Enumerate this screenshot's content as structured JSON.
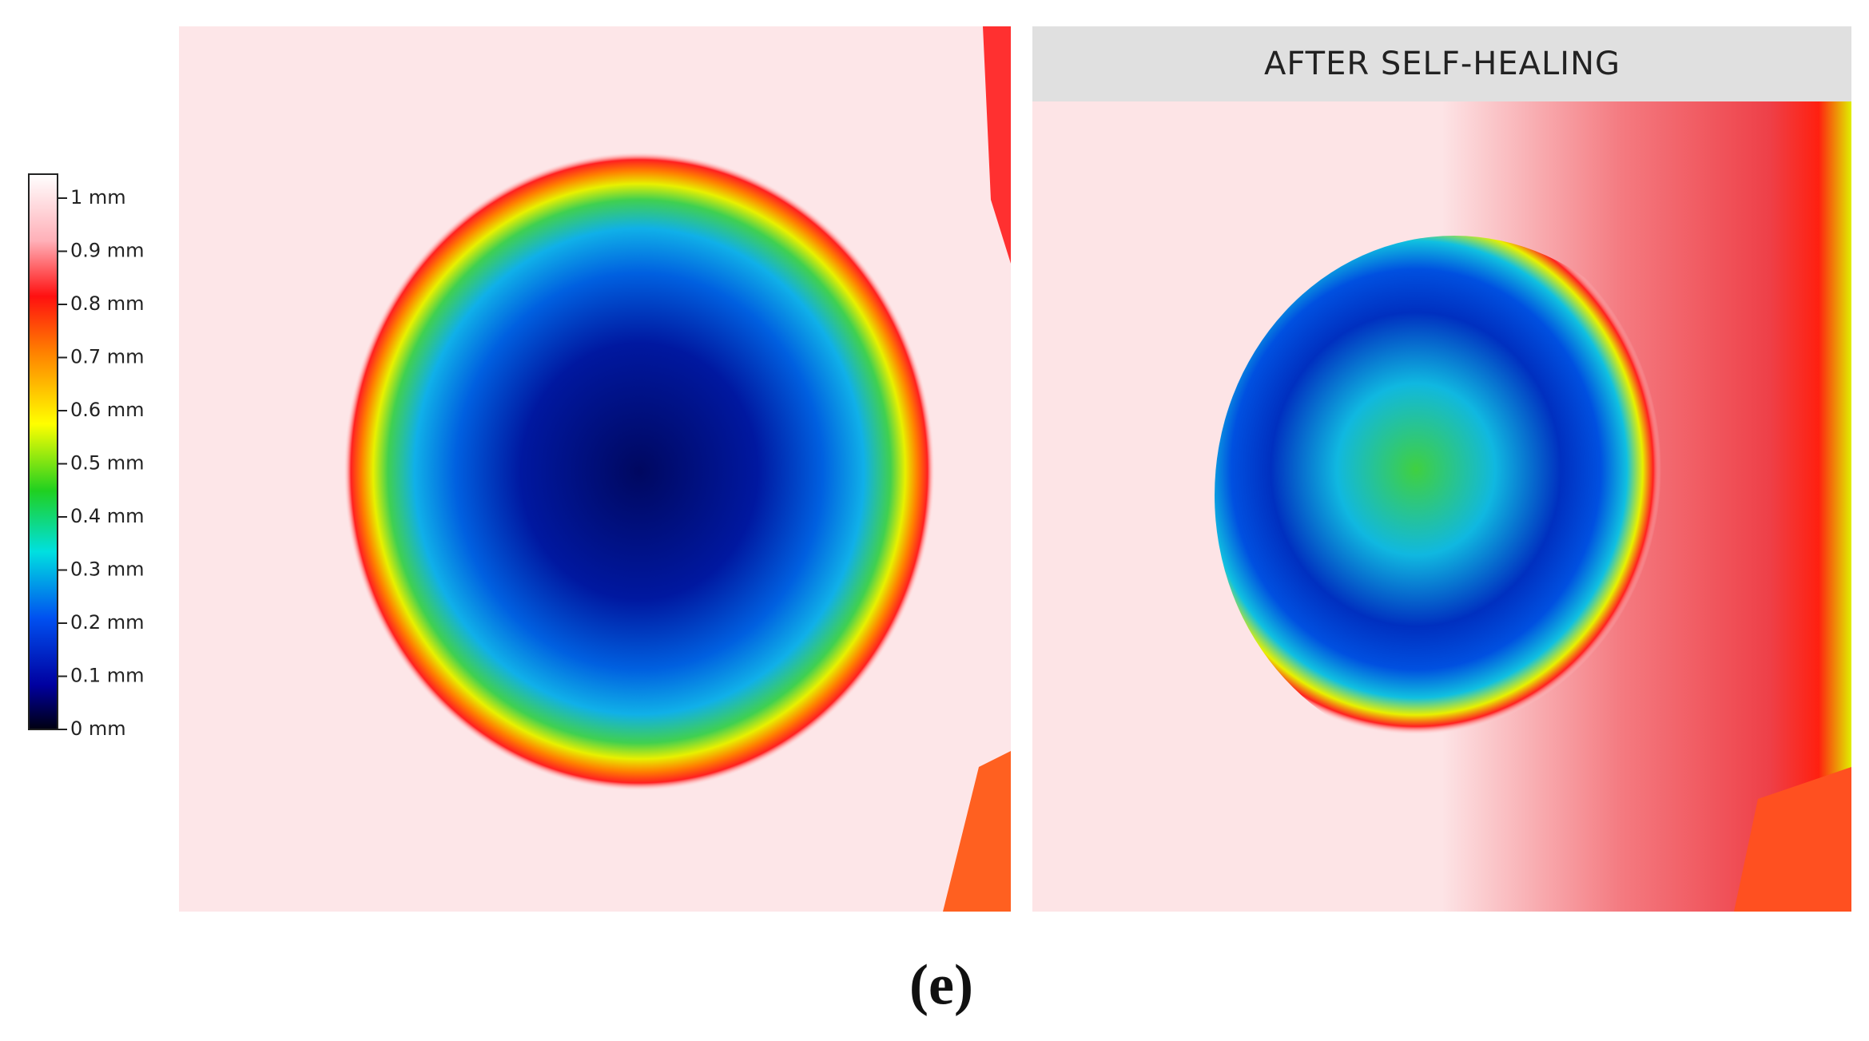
{
  "colorbar": {
    "ticks": [
      "1 mm",
      "0.9 mm",
      "0.8 mm",
      "0.7 mm",
      "0.6 mm",
      "0.5 mm",
      "0.4 mm",
      "0.3 mm",
      "0.2 mm",
      "0.1 mm",
      "0 mm"
    ]
  },
  "right_panel": {
    "title": "AFTER SELF-HEALING"
  },
  "caption": {
    "label": "(e)"
  }
}
